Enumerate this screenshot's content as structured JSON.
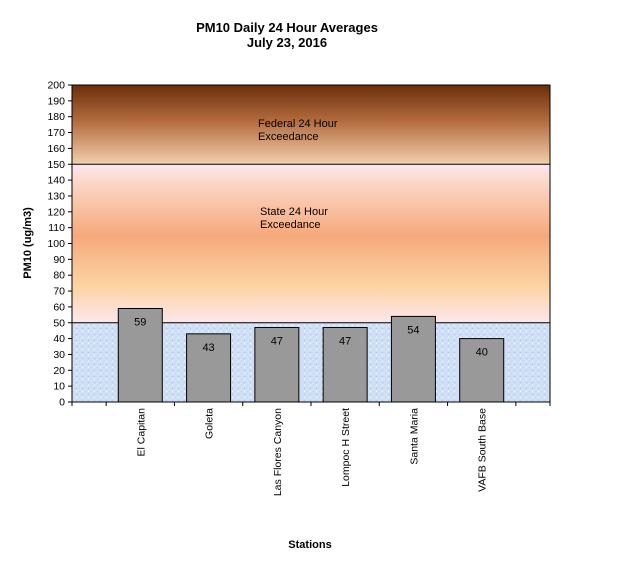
{
  "chart_data": {
    "type": "bar",
    "title": "PM10 Daily 24 Hour Averages",
    "subtitle": "July 23, 2016",
    "xlabel": "Stations",
    "ylabel": "PM10 (ug/m3)",
    "ylim": [
      0,
      200
    ],
    "ytick_step": 10,
    "grid": false,
    "categories": [
      "El Capitan",
      "Goleta",
      "Las Flores Canyon",
      "Lompoc H Street",
      "Santa Maria",
      "VAFB South Base"
    ],
    "values": [
      59,
      43,
      47,
      47,
      54,
      40
    ],
    "data_labels": [
      "59",
      "43",
      "47",
      "47",
      "54",
      "40"
    ],
    "bar_color": "#999999",
    "bands": [
      {
        "label": "Federal 24 Hour\nExceedance",
        "from": 150,
        "to": 200,
        "color": "#c98a5a"
      },
      {
        "label": "State 24 Hour\nExceedance",
        "from": 50,
        "to": 150,
        "color": "#f7b183"
      },
      {
        "label": "",
        "from": 0,
        "to": 50,
        "color": "#cfe0f5"
      }
    ]
  }
}
